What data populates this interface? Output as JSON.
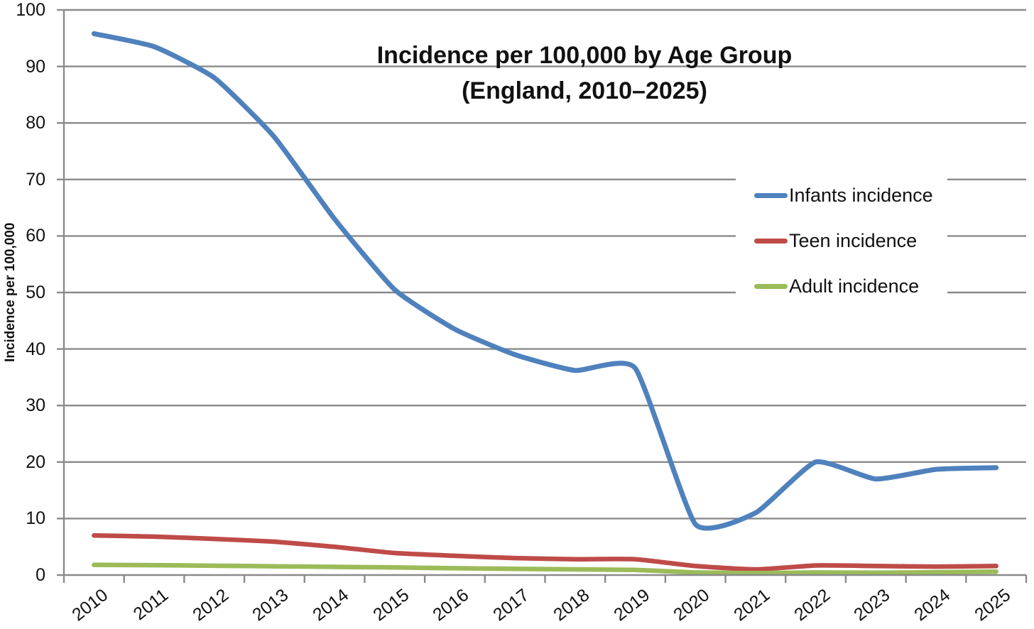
{
  "chart_data": {
    "type": "line",
    "title": "Incidence per 100,000 by Age Group",
    "subtitle": "(England, 2010–2025)",
    "ylabel": "Incidence per 100,000",
    "xlabel": "",
    "x": [
      2010,
      2011,
      2012,
      2013,
      2014,
      2015,
      2016,
      2017,
      2018,
      2019,
      2020,
      2021,
      2022,
      2023,
      2024,
      2025
    ],
    "series": [
      {
        "name": "Infants incidence",
        "color": "#4f81bd",
        "values": [
          95.8,
          93.5,
          88,
          77.5,
          63,
          50.5,
          43.5,
          39,
          36.2,
          36.6,
          9,
          11,
          20,
          17,
          18.7,
          19
        ]
      },
      {
        "name": "Teen incidence",
        "color": "#be4b48",
        "values": [
          7,
          6.8,
          6.4,
          5.9,
          5,
          3.9,
          3.4,
          3,
          2.8,
          2.8,
          1.6,
          1,
          1.7,
          1.6,
          1.5,
          1.6
        ]
      },
      {
        "name": "Adult incidence",
        "color": "#9bbb59",
        "values": [
          1.8,
          1.75,
          1.65,
          1.55,
          1.45,
          1.35,
          1.2,
          1.1,
          1,
          0.9,
          0.45,
          0.35,
          0.45,
          0.4,
          0.5,
          0.6
        ]
      }
    ],
    "ylim": [
      0,
      100
    ],
    "ytick_step": 10,
    "yticks": [
      0,
      10,
      20,
      30,
      40,
      50,
      60,
      70,
      80,
      90,
      100
    ],
    "grid": "horizontal",
    "legend_position": "inside-right",
    "line_smoothing": true,
    "style": {
      "grid_color": "#8a8a8a",
      "axis_color": "#8a8a8a",
      "text_color": "#111111",
      "background": "#ffffff"
    }
  }
}
